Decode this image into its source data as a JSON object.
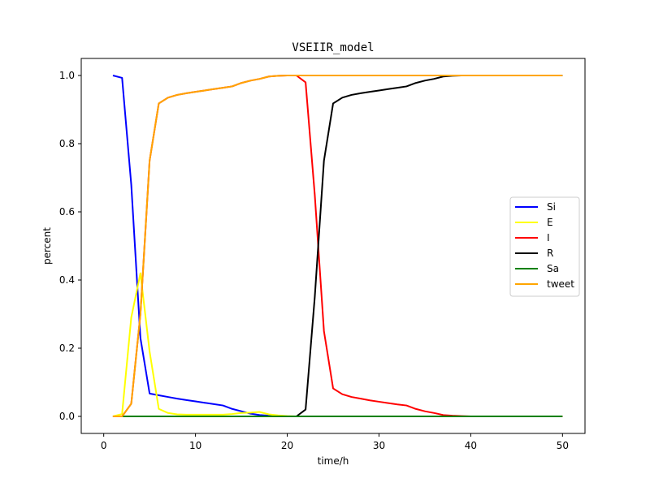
{
  "chart_data": {
    "type": "line",
    "title": "VSEIIR_model",
    "xlabel": "time/h",
    "ylabel": "percent",
    "xlim": [
      -2.45,
      52.45
    ],
    "ylim": [
      -0.05,
      1.05
    ],
    "xticks": [
      0,
      10,
      20,
      30,
      40,
      50
    ],
    "xtick_labels": [
      "0",
      "10",
      "20",
      "30",
      "40",
      "50"
    ],
    "yticks": [
      0.0,
      0.2,
      0.4,
      0.6,
      0.8,
      1.0
    ],
    "ytick_labels": [
      "0.0",
      "0.2",
      "0.4",
      "0.6",
      "0.8",
      "1.0"
    ],
    "grid": false,
    "legend_position": "center-right",
    "series": [
      {
        "name": "Si",
        "color": "#0000ff",
        "x": [
          1,
          2,
          3,
          4,
          5,
          6,
          7,
          8,
          9,
          10,
          11,
          12,
          13,
          14,
          15,
          16,
          17,
          18,
          19,
          20,
          21,
          22,
          50
        ],
        "y": [
          1.0,
          0.993,
          0.68,
          0.23,
          0.067,
          0.062,
          0.057,
          0.052,
          0.048,
          0.044,
          0.04,
          0.036,
          0.032,
          0.022,
          0.015,
          0.008,
          0.004,
          0.002,
          0.001,
          0.0,
          0.0,
          0.0,
          0.0
        ]
      },
      {
        "name": "E",
        "color": "#ffff00",
        "x": [
          1,
          2,
          3,
          4,
          5,
          6,
          7,
          8,
          9,
          10,
          11,
          12,
          13,
          14,
          15,
          16,
          17,
          18,
          19,
          20,
          21,
          22,
          50
        ],
        "y": [
          0.0,
          0.007,
          0.29,
          0.42,
          0.19,
          0.022,
          0.01,
          0.006,
          0.005,
          0.005,
          0.005,
          0.005,
          0.005,
          0.007,
          0.01,
          0.011,
          0.013,
          0.006,
          0.003,
          0.001,
          0.0,
          0.0,
          0.0
        ]
      },
      {
        "name": "I",
        "color": "#ff0000",
        "x": [
          1,
          2,
          3,
          4,
          5,
          6,
          7,
          8,
          9,
          10,
          11,
          12,
          13,
          14,
          15,
          16,
          17,
          18,
          19,
          20,
          21,
          22,
          23,
          24,
          25,
          26,
          27,
          28,
          29,
          30,
          31,
          32,
          33,
          34,
          35,
          36,
          37,
          38,
          39,
          40,
          50
        ],
        "y": [
          0.0,
          0.0,
          0.037,
          0.3,
          0.75,
          0.918,
          0.935,
          0.943,
          0.948,
          0.952,
          0.956,
          0.96,
          0.964,
          0.968,
          0.978,
          0.985,
          0.99,
          0.997,
          0.999,
          1.0,
          1.0,
          0.98,
          0.65,
          0.25,
          0.082,
          0.065,
          0.057,
          0.052,
          0.047,
          0.043,
          0.039,
          0.035,
          0.032,
          0.022,
          0.015,
          0.01,
          0.004,
          0.002,
          0.001,
          0.0,
          0.0
        ]
      },
      {
        "name": "R",
        "color": "#000000",
        "x": [
          1,
          2,
          3,
          4,
          5,
          6,
          7,
          8,
          9,
          10,
          11,
          12,
          13,
          14,
          15,
          16,
          17,
          18,
          19,
          20,
          21,
          22,
          23,
          24,
          25,
          26,
          27,
          28,
          29,
          30,
          31,
          32,
          33,
          34,
          35,
          36,
          37,
          38,
          39,
          40,
          50
        ],
        "y": [
          0.0,
          0.0,
          0.0,
          0.0,
          0.0,
          0.0,
          0.0,
          0.0,
          0.0,
          0.0,
          0.0,
          0.0,
          0.0,
          0.0,
          0.0,
          0.0,
          0.0,
          0.0,
          0.0,
          0.0,
          0.0,
          0.02,
          0.35,
          0.75,
          0.918,
          0.935,
          0.943,
          0.948,
          0.952,
          0.956,
          0.96,
          0.964,
          0.968,
          0.978,
          0.985,
          0.99,
          0.997,
          0.999,
          1.0,
          1.0,
          1.0
        ]
      },
      {
        "name": "Sa",
        "color": "#008000",
        "x": [
          1,
          50
        ],
        "y": [
          0.0,
          0.0
        ]
      },
      {
        "name": "tweet",
        "color": "#ffa500",
        "x": [
          1,
          2,
          3,
          4,
          5,
          6,
          7,
          8,
          9,
          10,
          11,
          12,
          13,
          14,
          15,
          16,
          17,
          18,
          19,
          20,
          21,
          22,
          50
        ],
        "y": [
          0.0,
          0.0,
          0.037,
          0.3,
          0.75,
          0.918,
          0.935,
          0.943,
          0.948,
          0.952,
          0.956,
          0.96,
          0.964,
          0.968,
          0.978,
          0.985,
          0.99,
          0.997,
          0.999,
          1.0,
          1.0,
          1.0,
          1.0
        ]
      }
    ]
  }
}
